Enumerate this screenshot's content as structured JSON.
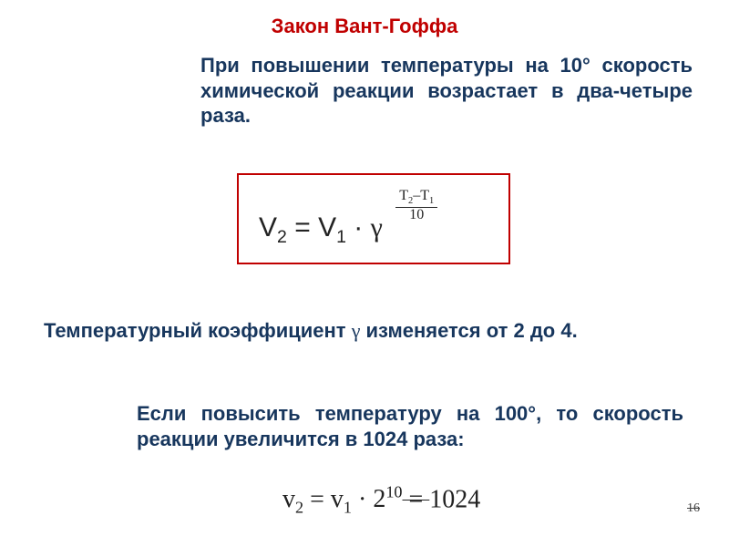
{
  "title": {
    "text": "Закон Вант-Гоффа",
    "color": "#c00000",
    "fontsize": 22
  },
  "intro": {
    "text": "При повышении температуры на 10° скорость химической реакции возрастает в два-четыре раза.",
    "color": "#17365d",
    "fontsize": 22
  },
  "formula_box": {
    "border_color": "#c00000"
  },
  "formula1": {
    "v": "V",
    "sub2": "2",
    "eq": " = ",
    "sub1": "1",
    "dot": " · ",
    "gamma": "γ",
    "exp_num": "T₂–T₁",
    "exp_num_plain_l": "T",
    "exp_num_plain_r": "T",
    "exp_num_sub_l": "2",
    "exp_num_sub_r": "1",
    "exp_num_minus": "–",
    "exp_den": "10",
    "base_fontsize": 30,
    "exp_fontsize": 16,
    "color": "#222222"
  },
  "coef": {
    "prefix": "Температурный коэффициент ",
    "gamma": "γ",
    "suffix": "  изменяется от 2 до 4.",
    "color": "#17365d",
    "fontsize": 22
  },
  "conclusion": {
    "text": "Если повысить температуру на 100°, то скорость реакции увеличится в 1024 раза:",
    "color": "#17365d",
    "fontsize": 22
  },
  "formula2": {
    "v": "v",
    "sub2": "2",
    "eq": " = ",
    "sub1": "1",
    "dot": " · ",
    "base": "2",
    "exp": "10",
    "eq2": " = ",
    "result_partial": "102",
    "result_cut": "4",
    "fontsize": 28,
    "color": "#222222"
  },
  "pageno": {
    "text": "16",
    "fontsize": 14,
    "color": "#444444"
  }
}
